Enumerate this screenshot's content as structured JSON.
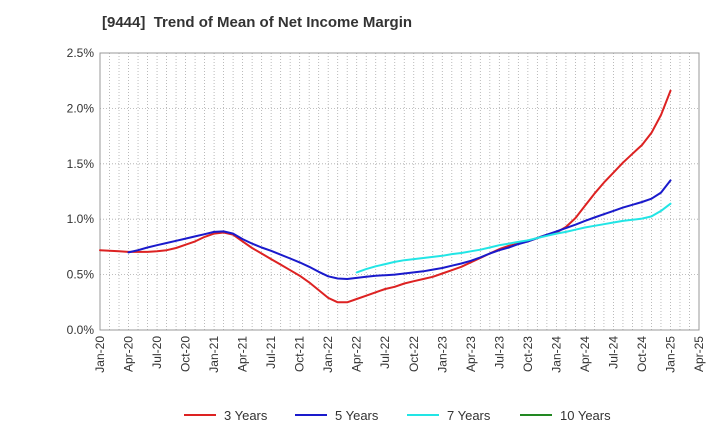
{
  "title": "[9444]  Trend of Mean of Net Income Margin",
  "chart_data": {
    "type": "line",
    "title": "[9444]  Trend of Mean of Net Income Margin",
    "xlabel": "",
    "ylabel": "",
    "x_range": [
      "2020-01",
      "2025-04"
    ],
    "ylim": [
      0,
      2.5
    ],
    "y_ticks": [
      "0.0%",
      "0.5%",
      "1.0%",
      "1.5%",
      "2.0%",
      "2.5%"
    ],
    "y_tick_values": [
      0,
      0.5,
      1.0,
      1.5,
      2.0,
      2.5
    ],
    "x_ticks": [
      "Jan-20",
      "Apr-20",
      "Jul-20",
      "Oct-20",
      "Jan-21",
      "Apr-21",
      "Jul-21",
      "Oct-21",
      "Jan-22",
      "Apr-22",
      "Jul-22",
      "Oct-22",
      "Jan-23",
      "Apr-23",
      "Jul-23",
      "Oct-23",
      "Jan-24",
      "Apr-24",
      "Jul-24",
      "Oct-24",
      "Jan-25",
      "Apr-25"
    ],
    "x_tick_dates": [
      "2020-01",
      "2020-04",
      "2020-07",
      "2020-10",
      "2021-01",
      "2021-04",
      "2021-07",
      "2021-10",
      "2022-01",
      "2022-04",
      "2022-07",
      "2022-10",
      "2023-01",
      "2023-04",
      "2023-07",
      "2023-10",
      "2024-01",
      "2024-04",
      "2024-07",
      "2024-10",
      "2025-01",
      "2025-04"
    ],
    "grid": true,
    "legend_position": "bottom",
    "series": [
      {
        "name": "3 Years",
        "color": "#dd2222",
        "points": [
          [
            "2020-01",
            0.72
          ],
          [
            "2020-02",
            0.715
          ],
          [
            "2020-03",
            0.71
          ],
          [
            "2020-04",
            0.705
          ],
          [
            "2020-05",
            0.705
          ],
          [
            "2020-06",
            0.705
          ],
          [
            "2020-07",
            0.71
          ],
          [
            "2020-08",
            0.72
          ],
          [
            "2020-09",
            0.74
          ],
          [
            "2020-10",
            0.77
          ],
          [
            "2020-11",
            0.8
          ],
          [
            "2020-12",
            0.84
          ],
          [
            "2021-01",
            0.87
          ],
          [
            "2021-02",
            0.88
          ],
          [
            "2021-03",
            0.86
          ],
          [
            "2021-04",
            0.8
          ],
          [
            "2021-05",
            0.74
          ],
          [
            "2021-06",
            0.69
          ],
          [
            "2021-07",
            0.64
          ],
          [
            "2021-08",
            0.59
          ],
          [
            "2021-09",
            0.54
          ],
          [
            "2021-10",
            0.49
          ],
          [
            "2021-11",
            0.43
          ],
          [
            "2021-12",
            0.36
          ],
          [
            "2022-01",
            0.29
          ],
          [
            "2022-02",
            0.25
          ],
          [
            "2022-03",
            0.25
          ],
          [
            "2022-04",
            0.28
          ],
          [
            "2022-05",
            0.31
          ],
          [
            "2022-06",
            0.34
          ],
          [
            "2022-07",
            0.37
          ],
          [
            "2022-08",
            0.39
          ],
          [
            "2022-09",
            0.42
          ],
          [
            "2022-10",
            0.44
          ],
          [
            "2022-11",
            0.46
          ],
          [
            "2022-12",
            0.48
          ],
          [
            "2023-01",
            0.51
          ],
          [
            "2023-02",
            0.54
          ],
          [
            "2023-03",
            0.57
          ],
          [
            "2023-04",
            0.61
          ],
          [
            "2023-05",
            0.65
          ],
          [
            "2023-06",
            0.69
          ],
          [
            "2023-07",
            0.73
          ],
          [
            "2023-08",
            0.76
          ],
          [
            "2023-09",
            0.78
          ],
          [
            "2023-10",
            0.8
          ],
          [
            "2023-11",
            0.83
          ],
          [
            "2023-12",
            0.86
          ],
          [
            "2024-01",
            0.88
          ],
          [
            "2024-02",
            0.93
          ],
          [
            "2024-03",
            1.01
          ],
          [
            "2024-04",
            1.12
          ],
          [
            "2024-05",
            1.23
          ],
          [
            "2024-06",
            1.33
          ],
          [
            "2024-07",
            1.42
          ],
          [
            "2024-08",
            1.51
          ],
          [
            "2024-09",
            1.59
          ],
          [
            "2024-10",
            1.67
          ],
          [
            "2024-11",
            1.78
          ],
          [
            "2024-12",
            1.94
          ],
          [
            "2025-01",
            2.16
          ]
        ]
      },
      {
        "name": "5 Years",
        "color": "#1a1acc",
        "points": [
          [
            "2020-04",
            0.7
          ],
          [
            "2020-05",
            0.72
          ],
          [
            "2020-06",
            0.745
          ],
          [
            "2020-07",
            0.765
          ],
          [
            "2020-08",
            0.785
          ],
          [
            "2020-09",
            0.805
          ],
          [
            "2020-10",
            0.825
          ],
          [
            "2020-11",
            0.845
          ],
          [
            "2020-12",
            0.865
          ],
          [
            "2021-01",
            0.885
          ],
          [
            "2021-02",
            0.89
          ],
          [
            "2021-03",
            0.87
          ],
          [
            "2021-04",
            0.82
          ],
          [
            "2021-05",
            0.78
          ],
          [
            "2021-06",
            0.745
          ],
          [
            "2021-07",
            0.715
          ],
          [
            "2021-08",
            0.68
          ],
          [
            "2021-09",
            0.645
          ],
          [
            "2021-10",
            0.61
          ],
          [
            "2021-11",
            0.57
          ],
          [
            "2021-12",
            0.525
          ],
          [
            "2022-01",
            0.485
          ],
          [
            "2022-02",
            0.465
          ],
          [
            "2022-03",
            0.46
          ],
          [
            "2022-04",
            0.47
          ],
          [
            "2022-05",
            0.48
          ],
          [
            "2022-06",
            0.49
          ],
          [
            "2022-07",
            0.495
          ],
          [
            "2022-08",
            0.5
          ],
          [
            "2022-09",
            0.51
          ],
          [
            "2022-10",
            0.52
          ],
          [
            "2022-11",
            0.53
          ],
          [
            "2022-12",
            0.545
          ],
          [
            "2023-01",
            0.56
          ],
          [
            "2023-02",
            0.58
          ],
          [
            "2023-03",
            0.6
          ],
          [
            "2023-04",
            0.625
          ],
          [
            "2023-05",
            0.655
          ],
          [
            "2023-06",
            0.69
          ],
          [
            "2023-07",
            0.72
          ],
          [
            "2023-08",
            0.745
          ],
          [
            "2023-09",
            0.775
          ],
          [
            "2023-10",
            0.8
          ],
          [
            "2023-11",
            0.83
          ],
          [
            "2023-12",
            0.86
          ],
          [
            "2024-01",
            0.89
          ],
          [
            "2024-02",
            0.92
          ],
          [
            "2024-03",
            0.95
          ],
          [
            "2024-04",
            0.985
          ],
          [
            "2024-05",
            1.015
          ],
          [
            "2024-06",
            1.045
          ],
          [
            "2024-07",
            1.075
          ],
          [
            "2024-08",
            1.105
          ],
          [
            "2024-09",
            1.13
          ],
          [
            "2024-10",
            1.155
          ],
          [
            "2024-11",
            1.185
          ],
          [
            "2024-12",
            1.24
          ],
          [
            "2025-01",
            1.35
          ]
        ]
      },
      {
        "name": "7 Years",
        "color": "#22e5e5",
        "points": [
          [
            "2022-04",
            0.52
          ],
          [
            "2022-05",
            0.55
          ],
          [
            "2022-06",
            0.575
          ],
          [
            "2022-07",
            0.595
          ],
          [
            "2022-08",
            0.615
          ],
          [
            "2022-09",
            0.63
          ],
          [
            "2022-10",
            0.64
          ],
          [
            "2022-11",
            0.65
          ],
          [
            "2022-12",
            0.66
          ],
          [
            "2023-01",
            0.67
          ],
          [
            "2023-02",
            0.685
          ],
          [
            "2023-03",
            0.695
          ],
          [
            "2023-04",
            0.71
          ],
          [
            "2023-05",
            0.725
          ],
          [
            "2023-06",
            0.745
          ],
          [
            "2023-07",
            0.765
          ],
          [
            "2023-08",
            0.78
          ],
          [
            "2023-09",
            0.795
          ],
          [
            "2023-10",
            0.81
          ],
          [
            "2023-11",
            0.83
          ],
          [
            "2023-12",
            0.85
          ],
          [
            "2024-01",
            0.87
          ],
          [
            "2024-02",
            0.885
          ],
          [
            "2024-03",
            0.905
          ],
          [
            "2024-04",
            0.925
          ],
          [
            "2024-05",
            0.94
          ],
          [
            "2024-06",
            0.955
          ],
          [
            "2024-07",
            0.97
          ],
          [
            "2024-08",
            0.985
          ],
          [
            "2024-09",
            0.995
          ],
          [
            "2024-10",
            1.005
          ],
          [
            "2024-11",
            1.025
          ],
          [
            "2024-12",
            1.075
          ],
          [
            "2025-01",
            1.14
          ]
        ]
      },
      {
        "name": "10 Years",
        "color": "#228822",
        "points": []
      }
    ]
  }
}
